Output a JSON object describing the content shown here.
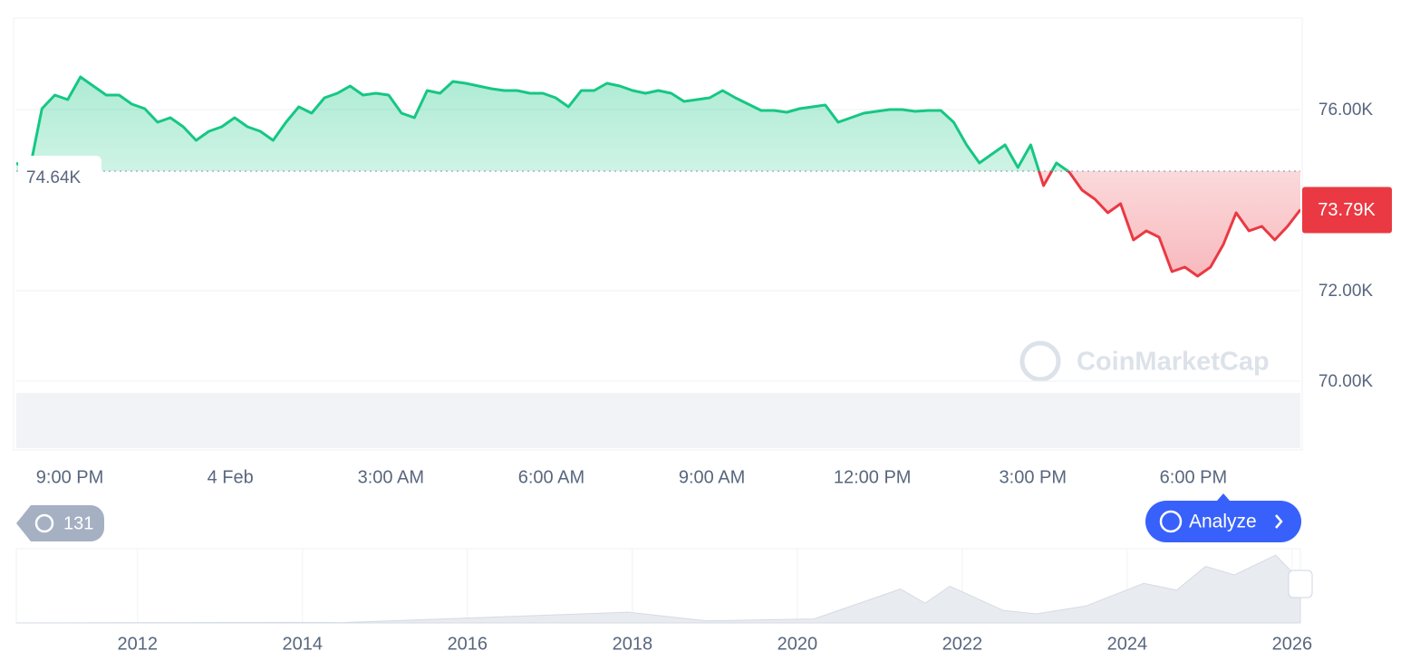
{
  "chart_data": {
    "type": "line",
    "x": [
      20,
      20.24,
      20.48,
      20.72,
      20.96,
      21.2,
      21.44,
      21.68,
      21.92,
      22.16,
      22.4,
      22.64,
      22.88,
      23.12,
      23.36,
      23.6,
      23.84,
      24.08,
      24.32,
      24.56,
      24.8,
      25.04,
      25.28,
      25.52,
      25.76,
      26,
      26.24,
      26.48,
      26.72,
      26.96,
      27.2,
      27.44,
      27.68,
      27.92,
      28.16,
      28.4,
      28.64,
      28.88,
      29.12,
      29.36,
      29.6,
      29.84,
      30.08,
      30.32,
      30.56,
      30.8,
      31.04,
      31.28,
      31.52,
      31.76,
      32,
      32.24,
      32.48,
      32.72,
      32.96,
      33.2,
      33.44,
      33.68,
      33.92,
      34.16,
      34.4,
      34.64,
      34.88,
      35.12,
      35.36,
      35.6,
      35.84,
      36.08,
      36.32,
      36.56,
      36.8,
      37.04,
      37.28,
      37.52,
      37.76,
      38,
      38.24,
      38.48,
      38.72,
      38.96,
      39.2,
      39.44,
      39.68,
      39.92,
      40.16,
      40.4,
      40.64,
      40.88,
      41.12,
      41.36,
      41.6,
      41.84,
      42.08,
      42.32,
      42.56,
      42.8,
      43.04,
      43.28,
      43.52,
      43.76,
      44
    ],
    "values": [
      74820,
      74620,
      76020,
      76320,
      76220,
      76720,
      76520,
      76320,
      76320,
      76120,
      76020,
      75720,
      75820,
      75620,
      75320,
      75520,
      75620,
      75820,
      75620,
      75520,
      75320,
      75720,
      76060,
      75920,
      76260,
      76360,
      76520,
      76320,
      76360,
      76320,
      75920,
      75820,
      76420,
      76360,
      76620,
      76580,
      76520,
      76460,
      76420,
      76420,
      76360,
      76360,
      76260,
      76060,
      76420,
      76420,
      76580,
      76520,
      76420,
      76360,
      76420,
      76360,
      76180,
      76220,
      76260,
      76420,
      76260,
      76120,
      75980,
      75980,
      75940,
      76020,
      76060,
      76100,
      75720,
      75820,
      75920,
      75960,
      76000,
      76000,
      75960,
      75980,
      75980,
      75720,
      75220,
      74820,
      75020,
      75220,
      74720,
      75220,
      74320,
      74820,
      74620,
      74220,
      74020,
      73720,
      73920,
      73120,
      73320,
      73180,
      72420,
      72520,
      72320,
      72520,
      73020,
      73720,
      73320,
      73420,
      73120,
      73420,
      73790
    ],
    "up_color": "#16c784",
    "down_color": "#ea3943",
    "xlim": [
      20,
      44
    ],
    "xticks": [
      {
        "value": 21,
        "label": "9:00 PM"
      },
      {
        "value": 24,
        "label": "4 Feb"
      },
      {
        "value": 27,
        "label": "3:00 AM"
      },
      {
        "value": 30,
        "label": "6:00 AM"
      },
      {
        "value": 33,
        "label": "9:00 AM"
      },
      {
        "value": 36,
        "label": "12:00 PM"
      },
      {
        "value": 39,
        "label": "3:00 PM"
      },
      {
        "value": 42,
        "label": "6:00 PM"
      }
    ],
    "ylim": [
      68520,
      78020
    ],
    "yticks": [
      {
        "value": 70000,
        "label": "70.00K"
      },
      {
        "value": 72000,
        "label": "72.00K"
      },
      {
        "value": 76000,
        "label": "76.00K"
      }
    ],
    "grid": true,
    "baseline": {
      "value": 74640,
      "label": "74.64K"
    },
    "last_price": {
      "value": 73790,
      "label": "73.79K"
    },
    "watermark": "CoinMarketCap",
    "history_count": "131",
    "analyze_button": "Analyze",
    "navigator": {
      "x": [
        2010.53,
        2013.9,
        2014.5,
        2017.95,
        2018.9,
        2020.2,
        2021.25,
        2021.55,
        2021.85,
        2022.5,
        2022.9,
        2023.5,
        2024.2,
        2024.6,
        2024.95,
        2025.3,
        2025.8,
        2026.1
      ],
      "values": [
        0,
        1000,
        600,
        19000,
        3500,
        7000,
        60000,
        35000,
        65000,
        22000,
        16000,
        30000,
        70000,
        58000,
        100000,
        85000,
        120000,
        75000
      ],
      "color": "#e8ebf0",
      "xlim": [
        2010.53,
        2026.1
      ],
      "ylim": [
        0,
        125000
      ],
      "xticks": [
        2012,
        2014,
        2016,
        2018,
        2020,
        2022,
        2024,
        2026
      ]
    }
  }
}
